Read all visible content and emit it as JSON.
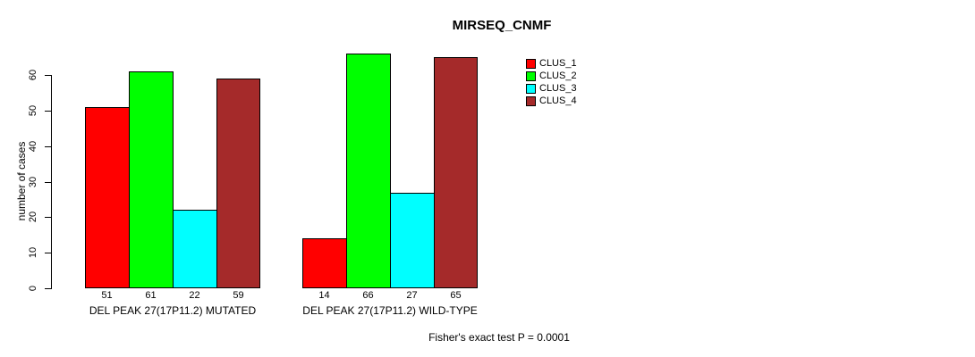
{
  "figure": {
    "title": "MIRSEQ_CNMF",
    "footer": "Fisher's exact test P = 0.0001"
  },
  "chart_data": {
    "type": "bar",
    "title": "MIRSEQ_CNMF",
    "xlabel": "",
    "ylabel": "number of cases",
    "ylim": [
      0,
      66
    ],
    "yticks": [
      0,
      10,
      20,
      30,
      40,
      50,
      60
    ],
    "grid": false,
    "legend_position": "top-right",
    "bar_value_labels": true,
    "categories": [
      "DEL PEAK 27(17P11.2) MUTATED",
      "DEL PEAK 27(17P11.2) WILD-TYPE"
    ],
    "groups": [
      {
        "label": "DEL PEAK 27(17P11.2) MUTATED",
        "values": [
          51,
          61,
          22,
          59
        ]
      },
      {
        "label": "DEL PEAK 27(17P11.2) WILD-TYPE",
        "values": [
          14,
          66,
          27,
          65
        ]
      }
    ],
    "series": [
      {
        "name": "CLUS_1",
        "color": "#FF0000"
      },
      {
        "name": "CLUS_2",
        "color": "#00FF00"
      },
      {
        "name": "CLUS_3",
        "color": "#00FFFF"
      },
      {
        "name": "CLUS_4",
        "color": "#A52A2A"
      }
    ],
    "annotation": "Fisher's exact test P = 0.0001",
    "colors": {
      "background": "#FFFFFF",
      "axis": "#000000",
      "text": "#000000"
    }
  }
}
